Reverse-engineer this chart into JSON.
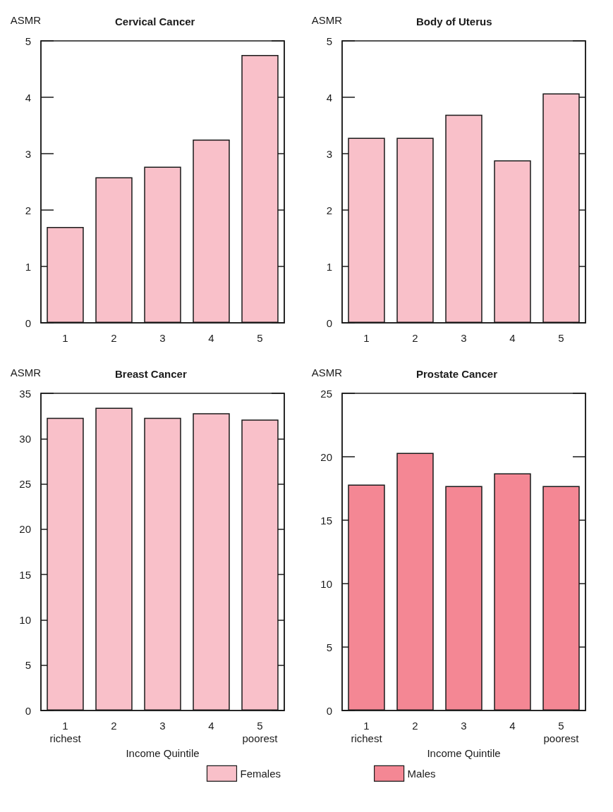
{
  "chart_data": [
    {
      "type": "bar",
      "title": "Cervical Cancer",
      "ylabel": "ASMR",
      "categories": [
        "1",
        "2",
        "3",
        "4",
        "5"
      ],
      "series": [
        {
          "color": "#f9c0c9",
          "values": [
            1.7,
            2.58,
            2.77,
            3.25,
            4.75
          ]
        }
      ],
      "ylim": [
        0,
        5
      ],
      "yticks": [
        0,
        1,
        2,
        3,
        4,
        5
      ],
      "grid": false,
      "legend": false
    },
    {
      "type": "bar",
      "title": "Body of Uterus",
      "ylabel": "ASMR",
      "categories": [
        "1",
        "2",
        "3",
        "4",
        "5"
      ],
      "series": [
        {
          "color": "#f9c0c9",
          "values": [
            3.28,
            3.28,
            3.69,
            2.88,
            4.07
          ]
        }
      ],
      "ylim": [
        0,
        5
      ],
      "yticks": [
        0,
        1,
        2,
        3,
        4,
        5
      ],
      "grid": false,
      "legend": false
    },
    {
      "type": "bar",
      "title": "Breast Cancer",
      "ylabel": "ASMR",
      "xlabel": "Income Quintile",
      "categories": [
        "1\nrichest",
        "2",
        "3",
        "4",
        "5\npoorest"
      ],
      "series": [
        {
          "name": "Females",
          "color": "#f9c0c9",
          "values": [
            32.3,
            33.4,
            32.3,
            32.8,
            32.1
          ]
        }
      ],
      "ylim": [
        0,
        35
      ],
      "yticks": [
        0,
        5,
        10,
        15,
        20,
        25,
        30,
        35
      ],
      "grid": false,
      "legend": "bottom right"
    },
    {
      "type": "bar",
      "title": "Prostate Cancer",
      "ylabel": "ASMR",
      "xlabel": "Income Quintile",
      "categories": [
        "1\nrichest",
        "2",
        "3",
        "4",
        "5\npoorest"
      ],
      "series": [
        {
          "name": "Males",
          "color": "#f48794",
          "values": [
            17.8,
            20.3,
            17.7,
            18.7,
            17.7
          ]
        }
      ],
      "ylim": [
        0,
        25
      ],
      "yticks": [
        0,
        5,
        10,
        15,
        20,
        25
      ],
      "grid": false,
      "legend": "bottom left"
    }
  ]
}
